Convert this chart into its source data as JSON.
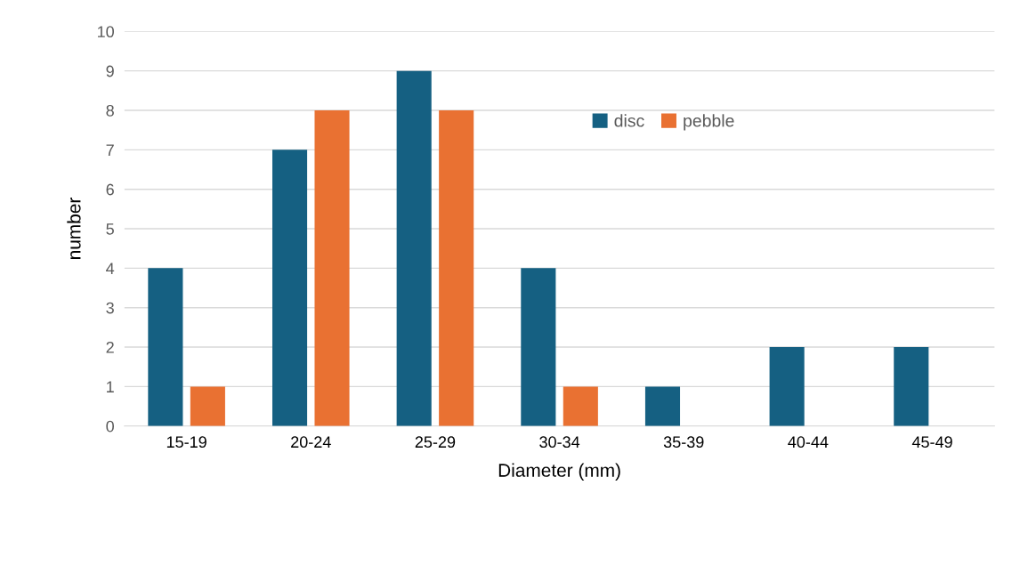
{
  "chart_data": {
    "type": "bar",
    "xlabel": "Diameter (mm)",
    "ylabel": "number",
    "categories": [
      "15-19",
      "20-24",
      "25-29",
      "30-34",
      "35-39",
      "40-44",
      "45-49"
    ],
    "series": [
      {
        "name": "disc",
        "color": "#156082",
        "values": [
          4,
          7,
          9,
          4,
          1,
          2,
          2
        ]
      },
      {
        "name": "pebble",
        "color": "#e97132",
        "values": [
          1,
          8,
          8,
          1,
          0,
          0,
          0
        ]
      }
    ],
    "ylim": [
      0,
      10
    ],
    "yticks": [
      0,
      1,
      2,
      3,
      4,
      5,
      6,
      7,
      8,
      9,
      10
    ],
    "grid": "y",
    "legend": "top"
  }
}
